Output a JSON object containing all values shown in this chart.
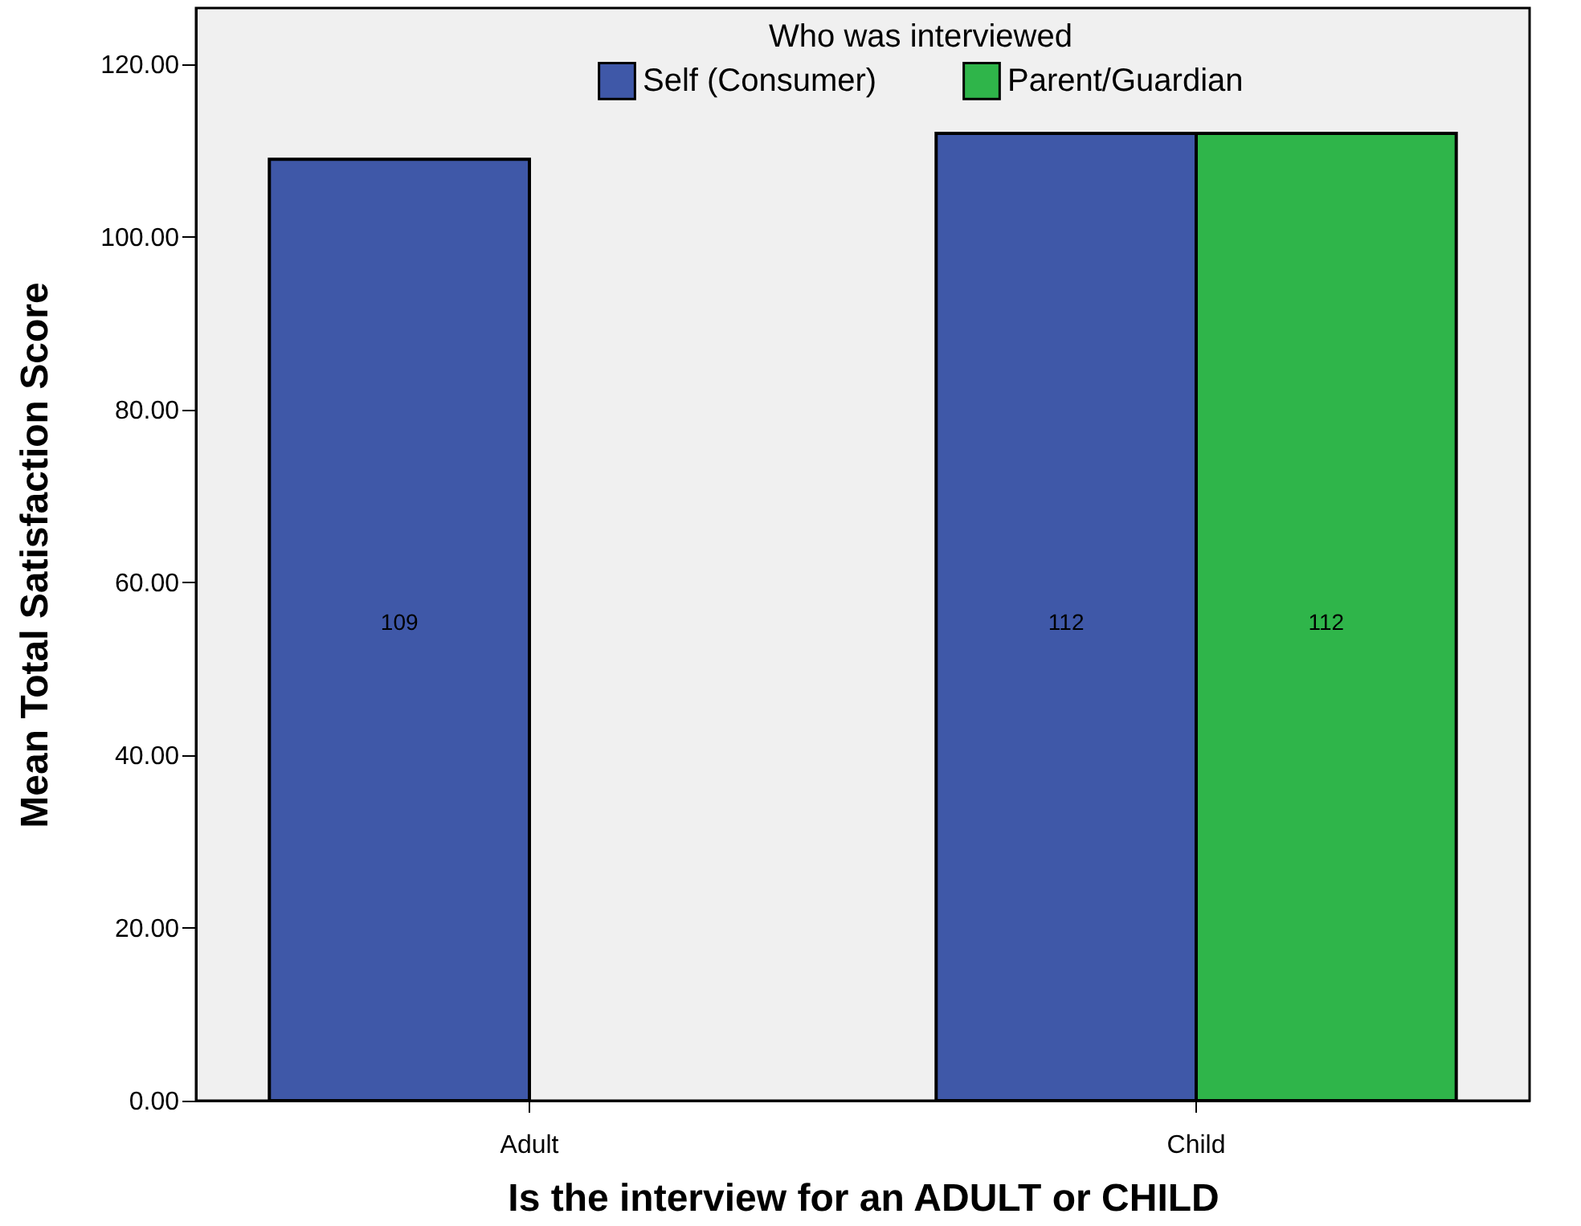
{
  "chart_data": {
    "type": "bar",
    "xlabel": "Is the interview for an ADULT or CHILD",
    "ylabel": "Mean Total Satisfaction Score",
    "legend_title": "Who was interviewed",
    "categories": [
      "Adult",
      "Child"
    ],
    "series": [
      {
        "name": "Self (Consumer)",
        "color": "#3f58a8",
        "values": [
          109,
          112
        ]
      },
      {
        "name": "Parent/Guardian",
        "color": "#2fb54a",
        "values": [
          null,
          112
        ]
      }
    ],
    "ylim": [
      0,
      126.5
    ],
    "yticks": [
      {
        "value": 0,
        "label": "0.00"
      },
      {
        "value": 20,
        "label": "20.00"
      },
      {
        "value": 40,
        "label": "40.00"
      },
      {
        "value": 60,
        "label": "60.00"
      },
      {
        "value": 80,
        "label": "80.00"
      },
      {
        "value": 100,
        "label": "100.00"
      },
      {
        "value": 120,
        "label": "120.00"
      }
    ],
    "legend": "top",
    "data_labels": true
  }
}
